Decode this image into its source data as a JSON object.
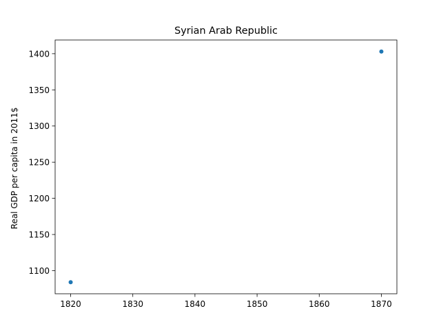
{
  "chart_data": {
    "type": "scatter",
    "title": "Syrian Arab Republic",
    "xlabel": "",
    "ylabel": "Real GDP per capita in 2011$",
    "x": [
      1820,
      1870
    ],
    "series": [
      {
        "values": [
          1084,
          1403
        ]
      }
    ],
    "xlim": [
      1817.5,
      1872.5
    ],
    "ylim": [
      1068.05,
      1418.95
    ],
    "xticks": [
      1820,
      1830,
      1840,
      1850,
      1860,
      1870
    ],
    "yticks": [
      1100,
      1150,
      1200,
      1250,
      1300,
      1350,
      1400
    ],
    "grid": false,
    "legend": "none",
    "marker_color": "#1f77b4"
  }
}
